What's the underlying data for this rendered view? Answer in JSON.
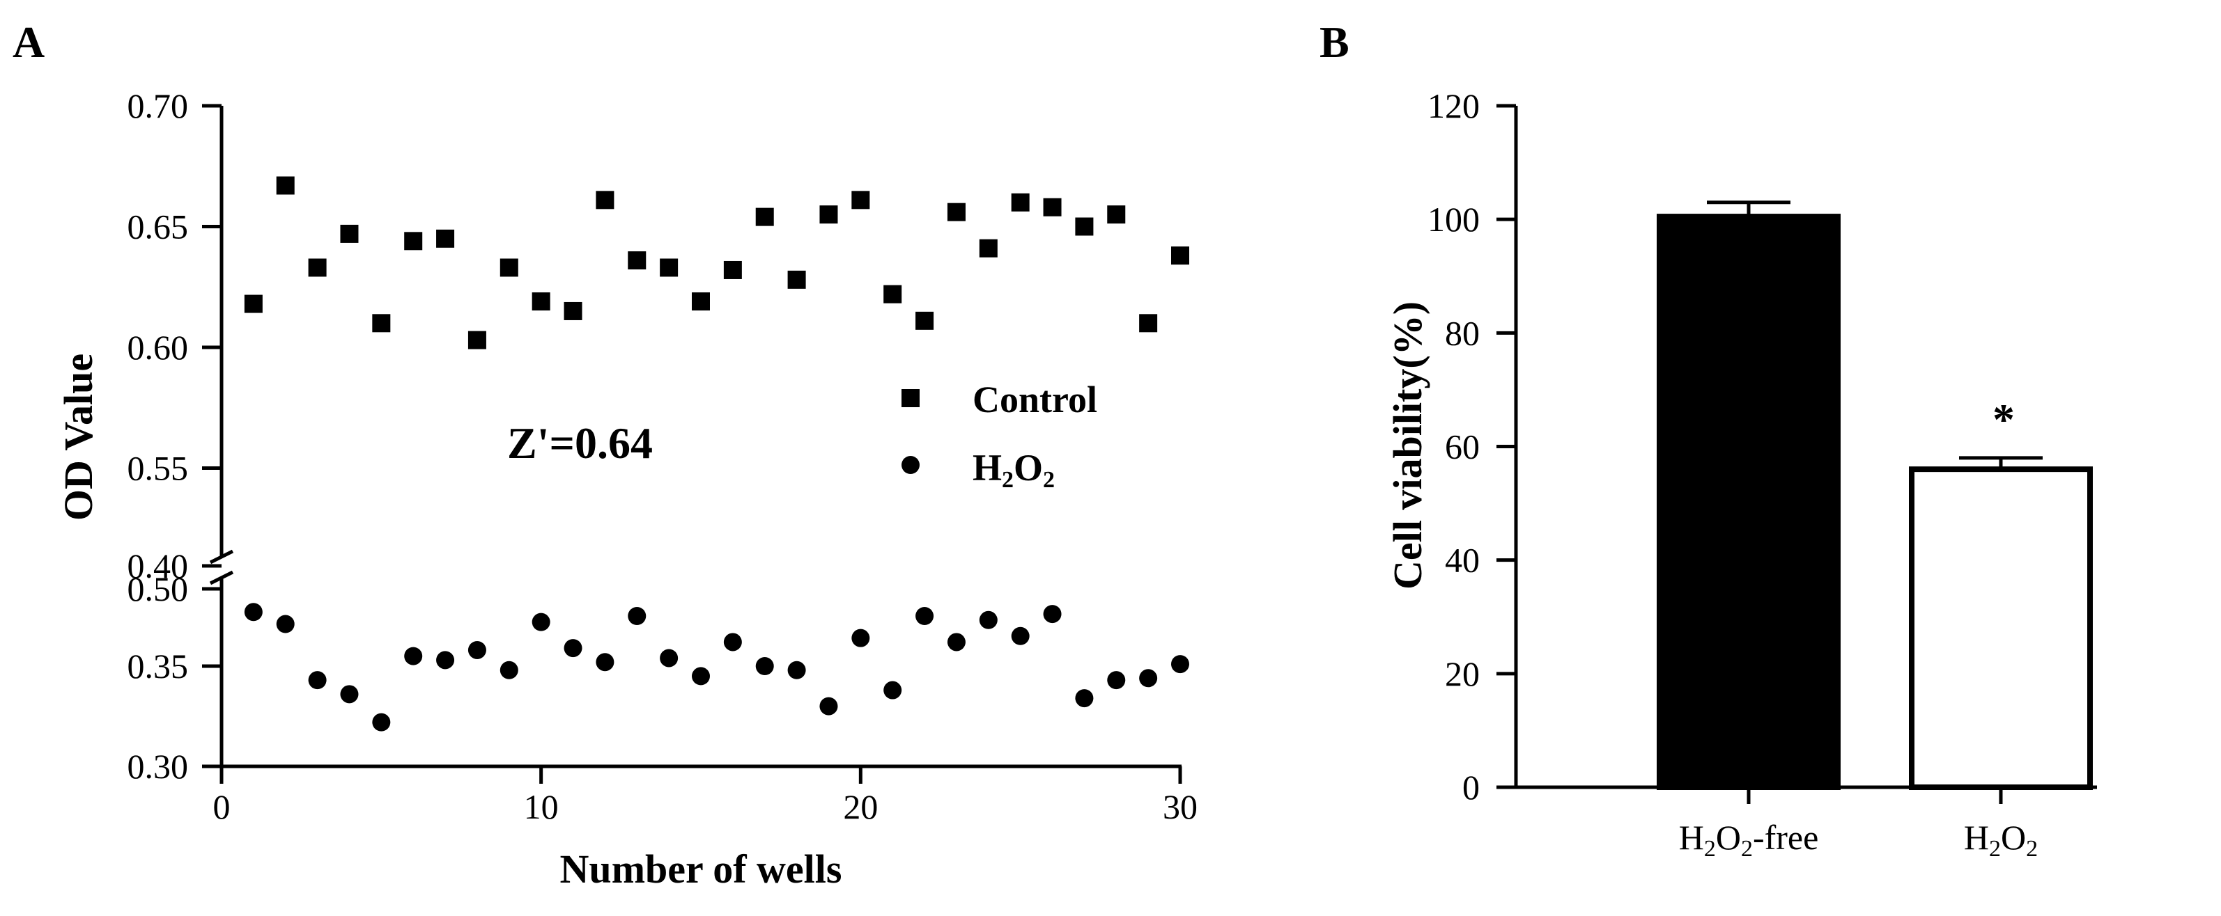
{
  "chart_data": [
    {
      "panel": "A",
      "type": "scatter",
      "xlabel": "Number of wells",
      "ylabel": "OD Value",
      "xlim": [
        0,
        30
      ],
      "ylim": [
        0.3,
        0.7
      ],
      "yaxis_break": [
        0.4,
        0.5
      ],
      "xticks": [
        0,
        10,
        20,
        30
      ],
      "yticks": [
        0.3,
        0.35,
        0.4,
        0.5,
        0.55,
        0.6,
        0.65,
        0.7
      ],
      "ytick_labels": [
        "0.30",
        "0.35",
        "0.40",
        "0.50",
        "0.55",
        "0.60",
        "0.65",
        "0.70"
      ],
      "annotation": "Z'=0.64",
      "legend_position": "right",
      "series": [
        {
          "name": "Control",
          "marker": "square",
          "x": [
            1,
            2,
            3,
            4,
            5,
            6,
            7,
            8,
            9,
            10,
            11,
            12,
            13,
            14,
            15,
            16,
            17,
            18,
            19,
            20,
            21,
            22,
            23,
            24,
            25,
            26,
            27,
            28,
            29,
            30
          ],
          "y": [
            0.618,
            0.667,
            0.633,
            0.647,
            0.61,
            0.644,
            0.645,
            0.603,
            0.633,
            0.619,
            0.615,
            0.661,
            0.636,
            0.633,
            0.619,
            0.632,
            0.654,
            0.628,
            0.655,
            0.661,
            0.622,
            0.611,
            0.656,
            0.641,
            0.66,
            0.658,
            0.65,
            0.655,
            0.61,
            0.638
          ]
        },
        {
          "name": "H2O2",
          "legend_main": "H",
          "legend_sub1": "2",
          "legend_mid": "O",
          "legend_sub2": "2",
          "marker": "circle",
          "x": [
            1,
            2,
            3,
            4,
            5,
            6,
            7,
            8,
            9,
            10,
            11,
            12,
            13,
            14,
            15,
            16,
            17,
            18,
            19,
            20,
            21,
            22,
            23,
            24,
            25,
            26,
            27,
            28,
            29,
            30
          ],
          "y": [
            0.377,
            0.371,
            0.343,
            0.336,
            0.322,
            0.355,
            0.353,
            0.358,
            0.348,
            0.372,
            0.359,
            0.352,
            0.375,
            0.354,
            0.345,
            0.362,
            0.35,
            0.348,
            0.33,
            0.364,
            0.338,
            0.375,
            0.362,
            0.373,
            0.365,
            0.376,
            0.334,
            0.343,
            0.344,
            0.351
          ]
        }
      ]
    },
    {
      "panel": "B",
      "type": "bar",
      "ylabel": "Cell viability(%)",
      "ylim": [
        0,
        120
      ],
      "yticks": [
        0,
        20,
        40,
        60,
        80,
        100,
        120
      ],
      "categories": [
        {
          "main": "H",
          "sub1": "2",
          "mid": "O",
          "sub2": "2",
          "suffix": "-free",
          "label": "H2O2-free"
        },
        {
          "main": "H",
          "sub1": "2",
          "mid": "O",
          "sub2": "2",
          "suffix": "",
          "label": "H2O2"
        }
      ],
      "values": [
        100.5,
        56
      ],
      "errors": [
        2.5,
        2
      ],
      "fills": [
        "#000000",
        "#ffffff"
      ],
      "significance": [
        "",
        "*"
      ]
    }
  ]
}
